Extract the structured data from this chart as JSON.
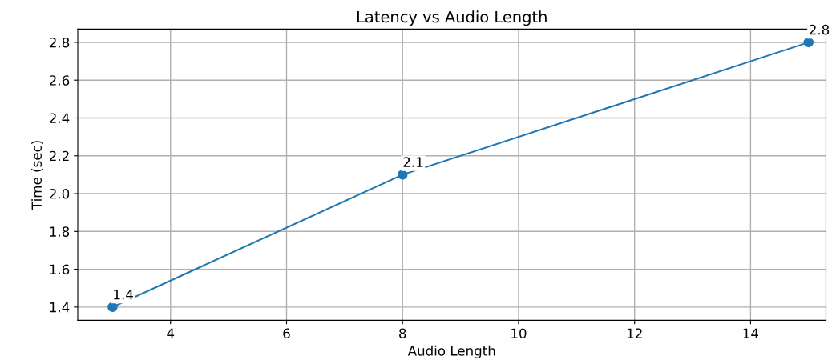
{
  "chart_data": {
    "type": "line",
    "title": "Latency vs Audio Length",
    "xlabel": "Audio Length",
    "ylabel": "Time (sec)",
    "x": [
      3,
      8,
      15
    ],
    "series": [
      {
        "color": "#1f77b4",
        "values": [
          1.4,
          2.1,
          2.8
        ]
      }
    ],
    "data_labels": true,
    "marker": "circle",
    "line_style": "solid",
    "grid": true,
    "xlim": [
      2.4,
      15.3
    ],
    "xticks": [
      4,
      6,
      8,
      10,
      12,
      14
    ],
    "ylim": [
      1.33,
      2.87
    ],
    "yticks": [
      1.4,
      1.6,
      1.8,
      {
        "value": 2.0,
        "label": "2.0"
      },
      2.2,
      2.4,
      2.6,
      2.8
    ]
  }
}
